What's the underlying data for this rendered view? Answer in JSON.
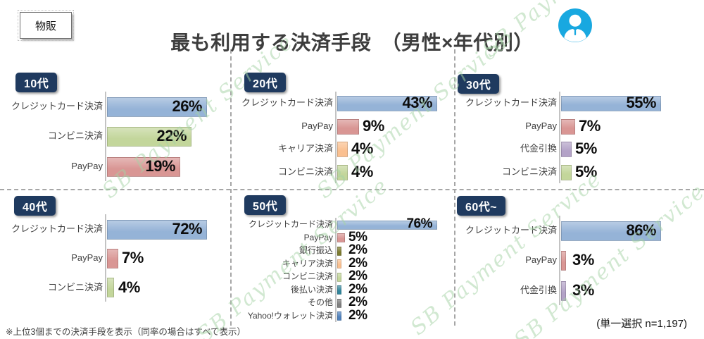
{
  "header": {
    "tag": "物販",
    "title": "最も利用する決済手段　（男性×年代別）",
    "icon": "male-person-icon"
  },
  "watermark": {
    "text": "SB Payment Service",
    "color": "#a5d3a5"
  },
  "colors": {
    "badge_navy": "#1f3a5f",
    "axis_gray": "#c3c3c3",
    "divider_gray": "#a6a6a6",
    "credit_blue": "#95b3d7",
    "convenience_green": "#c3d69b",
    "paypay_red": "#d99694",
    "carrier_orange": "#fac090",
    "cod_purple": "#b3a2c7",
    "bank_olive": "#7d7b2f",
    "deferred_teal": "#31859c",
    "other_gray": "#7f7f7f",
    "yahoo_blue": "#4f81bd",
    "icon_blue": "#18a8e0"
  },
  "chart_data": [
    {
      "type": "bar",
      "orientation": "horizontal",
      "title": "10代",
      "unit": "%",
      "scale": "bars sized relative to panel max",
      "grid": false,
      "legend": false,
      "categories": [
        "クレジットカード決済",
        "コンビニ決済",
        "PayPay"
      ],
      "values": [
        26,
        22,
        19
      ],
      "colors": [
        "#95b3d7",
        "#c3d69b",
        "#d99694"
      ]
    },
    {
      "type": "bar",
      "orientation": "horizontal",
      "title": "20代",
      "unit": "%",
      "scale": "bars sized relative to panel max",
      "grid": false,
      "legend": false,
      "categories": [
        "クレジットカード決済",
        "PayPay",
        "キャリア決済",
        "コンビニ決済"
      ],
      "values": [
        43,
        9,
        4,
        4
      ],
      "colors": [
        "#95b3d7",
        "#d99694",
        "#fac090",
        "#c3d69b"
      ]
    },
    {
      "type": "bar",
      "orientation": "horizontal",
      "title": "30代",
      "unit": "%",
      "scale": "bars sized relative to panel max",
      "grid": false,
      "legend": false,
      "categories": [
        "クレジットカード決済",
        "PayPay",
        "代金引換",
        "コンビニ決済"
      ],
      "values": [
        55,
        7,
        5,
        5
      ],
      "colors": [
        "#95b3d7",
        "#d99694",
        "#b3a2c7",
        "#c3d69b"
      ]
    },
    {
      "type": "bar",
      "orientation": "horizontal",
      "title": "40代",
      "unit": "%",
      "scale": "bars sized relative to panel max",
      "grid": false,
      "legend": false,
      "categories": [
        "クレジットカード決済",
        "PayPay",
        "コンビニ決済"
      ],
      "values": [
        72,
        7,
        4
      ],
      "colors": [
        "#95b3d7",
        "#d99694",
        "#c3d69b"
      ]
    },
    {
      "type": "bar",
      "orientation": "horizontal",
      "title": "50代",
      "unit": "%",
      "scale": "bars sized relative to panel max",
      "grid": false,
      "legend": false,
      "categories": [
        "クレジットカード決済",
        "PayPay",
        "銀行振込",
        "キャリア決済",
        "コンビニ決済",
        "後払い決済",
        "その他",
        "Yahoo!ウォレット決済"
      ],
      "values": [
        76,
        5,
        2,
        2,
        2,
        2,
        2,
        2
      ],
      "colors": [
        "#95b3d7",
        "#d99694",
        "#7d7b2f",
        "#fac090",
        "#c3d69b",
        "#31859c",
        "#7f7f7f",
        "#4f81bd"
      ]
    },
    {
      "type": "bar",
      "orientation": "horizontal",
      "title": "60代~",
      "unit": "%",
      "scale": "bars sized relative to panel max",
      "grid": false,
      "legend": false,
      "categories": [
        "クレジットカード決済",
        "PayPay",
        "代金引換"
      ],
      "values": [
        86,
        3,
        3
      ],
      "colors": [
        "#95b3d7",
        "#d99694",
        "#b3a2c7"
      ]
    }
  ],
  "footnote": "※上位3個までの決済手段を表示（同率の場合はすべて表示）",
  "sample_note": "(単一選択 n=1,197)"
}
